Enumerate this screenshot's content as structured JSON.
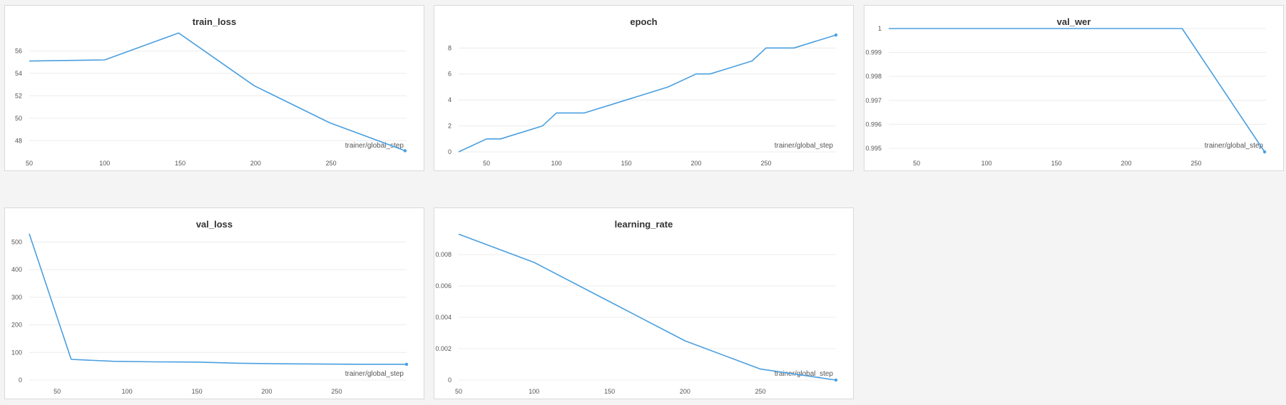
{
  "theme": {
    "line_color": "#4a9fe0",
    "grid_color": "#ececec"
  },
  "chart_data": [
    {
      "id": "train_loss",
      "type": "line",
      "title": "train_loss",
      "xlabel": "trainer/global_step",
      "ylabel": "",
      "grid": true,
      "xlim": [
        50,
        300
      ],
      "ylim": [
        47,
        58
      ],
      "xticks": [
        50,
        100,
        150,
        200,
        250
      ],
      "yticks": [
        48,
        50,
        52,
        54,
        56
      ],
      "ytick_labels": [
        "48",
        "50",
        "52",
        "54",
        "56"
      ],
      "series": [
        {
          "x": [
            50,
            100,
            149,
            199,
            249,
            299
          ],
          "y": [
            55.1,
            55.2,
            57.6,
            52.9,
            49.6,
            47.1
          ]
        }
      ]
    },
    {
      "id": "epoch",
      "type": "line",
      "title": "epoch",
      "xlabel": "trainer/global_step",
      "ylabel": "",
      "grid": true,
      "xlim": [
        30,
        300
      ],
      "ylim": [
        0,
        9.5
      ],
      "xticks": [
        50,
        100,
        150,
        200,
        250
      ],
      "yticks": [
        0,
        2,
        4,
        6,
        8
      ],
      "ytick_labels": [
        "0",
        "2",
        "4",
        "6",
        "8"
      ],
      "series": [
        {
          "x": [
            30,
            50,
            60,
            90,
            100,
            120,
            150,
            180,
            200,
            210,
            240,
            250,
            270,
            300
          ],
          "y": [
            0,
            1,
            1,
            2,
            3,
            3,
            4,
            5,
            6,
            6,
            7,
            8,
            8,
            9
          ]
        }
      ]
    },
    {
      "id": "val_wer",
      "type": "line",
      "title": "val_wer",
      "xlabel": "trainer/global_step",
      "ylabel": "",
      "grid": true,
      "xlim": [
        30,
        300
      ],
      "ylim": [
        0.99485,
        1.0
      ],
      "xticks": [
        50,
        100,
        150,
        200,
        250
      ],
      "yticks": [
        0.995,
        0.996,
        0.997,
        0.998,
        0.999,
        1
      ],
      "ytick_labels": [
        "0.995",
        "0.996",
        "0.997",
        "0.998",
        "0.999",
        "1"
      ],
      "series": [
        {
          "x": [
            30,
            240,
            299
          ],
          "y": [
            1.0,
            1.0,
            0.99485
          ]
        }
      ]
    },
    {
      "id": "val_loss",
      "type": "line",
      "title": "val_loss",
      "xlabel": "trainer/global_step",
      "ylabel": "",
      "grid": true,
      "xlim": [
        30,
        300
      ],
      "ylim": [
        0,
        540
      ],
      "xticks": [
        50,
        100,
        150,
        200,
        250
      ],
      "yticks": [
        0,
        100,
        200,
        300,
        400,
        500
      ],
      "ytick_labels": [
        "0",
        "100",
        "200",
        "300",
        "400",
        "500"
      ],
      "series": [
        {
          "x": [
            30,
            60,
            90,
            120,
            150,
            180,
            210,
            240,
            270,
            300
          ],
          "y": [
            530,
            75,
            68,
            66,
            65,
            61,
            59,
            58,
            57,
            57
          ]
        }
      ]
    },
    {
      "id": "learning_rate",
      "type": "line",
      "title": "learning_rate",
      "xlabel": "trainer/global_step",
      "ylabel": "",
      "grid": true,
      "xlim": [
        50,
        300
      ],
      "ylim": [
        0,
        0.0095
      ],
      "xticks": [
        50,
        100,
        150,
        200,
        250
      ],
      "yticks": [
        0,
        0.002,
        0.004,
        0.006,
        0.008
      ],
      "ytick_labels": [
        "0",
        "0.002",
        "0.004",
        "0.006",
        "0.008"
      ],
      "series": [
        {
          "x": [
            50,
            100,
            150,
            200,
            250,
            300
          ],
          "y": [
            0.0093,
            0.0075,
            0.005,
            0.0025,
            0.0007,
            0.0
          ]
        }
      ]
    }
  ]
}
